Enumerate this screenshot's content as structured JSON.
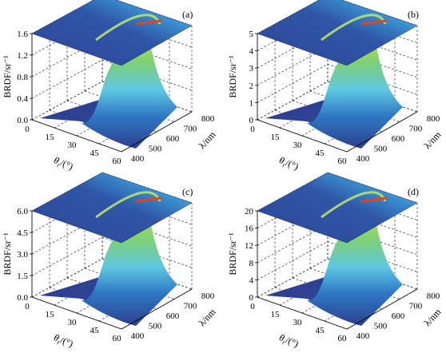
{
  "chart_data": [
    {
      "type": "surface3d",
      "panel_label": "(a)",
      "zlabel": "BRDF/sr⁻¹",
      "xlabel_symbol": "θ",
      "xlabel_sub": "r",
      "xlabel_unit": "/(°)",
      "ylabel": "λ/nm",
      "x_ticks": [
        "0",
        "15",
        "30",
        "45",
        "60"
      ],
      "y_ticks": [
        "400",
        "500",
        "600",
        "700",
        "800"
      ],
      "z_ticks": [
        "0.0",
        "0.4",
        "0.8",
        "1.2",
        "1.6"
      ],
      "zlim": [
        0,
        1.6
      ],
      "peak_value": 1.6
    },
    {
      "type": "surface3d",
      "panel_label": "(b)",
      "zlabel": "BRDF/sr⁻¹",
      "xlabel_symbol": "θ",
      "xlabel_sub": "r",
      "xlabel_unit": "/(°)",
      "ylabel": "λ/nm",
      "x_ticks": [
        "0",
        "15",
        "30",
        "45",
        "60"
      ],
      "y_ticks": [
        "400",
        "500",
        "600",
        "700",
        "800"
      ],
      "z_ticks": [
        "0",
        "1",
        "2",
        "3",
        "4",
        "5"
      ],
      "zlim": [
        0,
        5
      ],
      "peak_value": 5
    },
    {
      "type": "surface3d",
      "panel_label": "(c)",
      "zlabel": "BRDF/sr⁻¹",
      "xlabel_symbol": "θ",
      "xlabel_sub": "r",
      "xlabel_unit": "/(°)",
      "ylabel": "λ/nm",
      "x_ticks": [
        "0",
        "15",
        "30",
        "45",
        "60"
      ],
      "y_ticks": [
        "400",
        "500",
        "600",
        "700",
        "800"
      ],
      "z_ticks": [
        "0.0",
        "1.5",
        "3.0",
        "4.5",
        "6.0"
      ],
      "zlim": [
        0,
        6.0
      ],
      "peak_value": 6.0
    },
    {
      "type": "surface3d",
      "panel_label": "(d)",
      "zlabel": "BRDF/sr⁻¹",
      "xlabel_symbol": "θ",
      "xlabel_sub": "r",
      "xlabel_unit": "/(°)",
      "ylabel": "λ/nm",
      "x_ticks": [
        "0",
        "15",
        "30",
        "45",
        "60"
      ],
      "y_ticks": [
        "400",
        "500",
        "600",
        "700",
        "800"
      ],
      "z_ticks": [
        "0",
        "4",
        "8",
        "12",
        "16",
        "20"
      ],
      "zlim": [
        0,
        20
      ],
      "peak_value": 20
    }
  ],
  "colormap": [
    "#2b3f8f",
    "#2f6fc0",
    "#5fc7e6",
    "#7ad07a",
    "#d8e640",
    "#f3c226",
    "#e03c1c"
  ]
}
